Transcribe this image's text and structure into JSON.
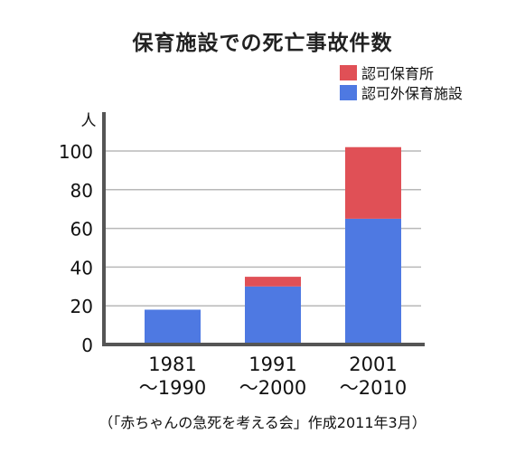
{
  "title": "保育施設での死亡事故件数",
  "source": "（「赤ちゃんの急死を考える会」作成2011年3月）",
  "chart_data": {
    "type": "bar",
    "stacked": true,
    "title": "保育施設での死亡事故件数",
    "ylabel": "人",
    "xlabel": "",
    "ylim": [
      0,
      100
    ],
    "yticks": [
      "0",
      "20",
      "40",
      "60",
      "80",
      "100"
    ],
    "grid": true,
    "legend_position": "top-right",
    "categories": [
      {
        "line1": "1981",
        "line2": "～1990"
      },
      {
        "line1": "1991",
        "line2": "～2000"
      },
      {
        "line1": "2001",
        "line2": "～2010"
      }
    ],
    "series": [
      {
        "name": "認可外保育施設",
        "color": "#4e79e2",
        "values": [
          18,
          30,
          65
        ]
      },
      {
        "name": "認可保育所",
        "color": "#e05056",
        "values": [
          0,
          5,
          37
        ]
      }
    ],
    "legend": [
      {
        "name": "認可保育所",
        "color": "#e05056"
      },
      {
        "name": "認可外保育施設",
        "color": "#4e79e2"
      }
    ]
  }
}
